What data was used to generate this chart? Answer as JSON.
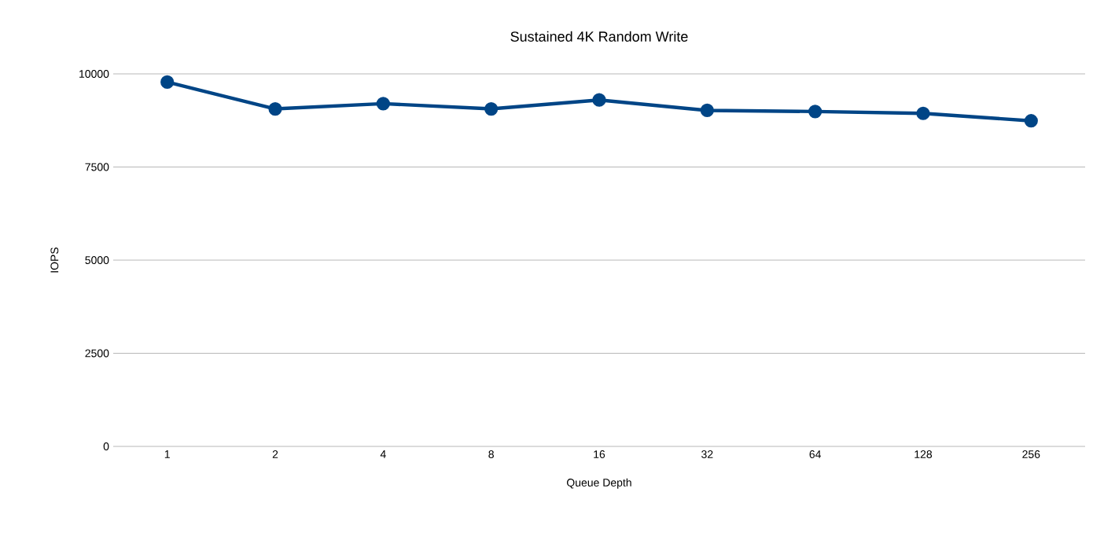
{
  "chart_data": {
    "type": "line",
    "title": "Sustained 4K Random Write",
    "xlabel": "Queue Depth",
    "ylabel": "IOPS",
    "categories": [
      "1",
      "2",
      "4",
      "8",
      "16",
      "32",
      "64",
      "128",
      "256"
    ],
    "series": [
      {
        "color": "#004586",
        "values": [
          9780,
          9060,
          9200,
          9060,
          9300,
          9020,
          8990,
          8940,
          8740
        ]
      }
    ],
    "ylim": [
      0,
      10000
    ],
    "yticks": [
      0,
      2500,
      5000,
      7500,
      10000
    ],
    "grid": "y",
    "marker": "circle",
    "line_style": "solid"
  }
}
